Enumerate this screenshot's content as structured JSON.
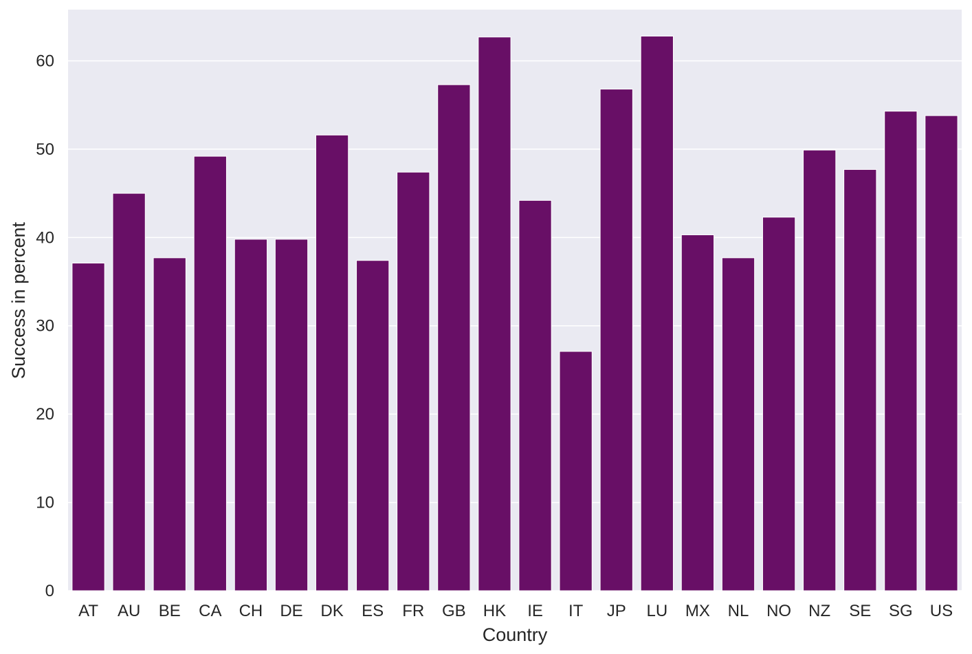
{
  "chart_data": {
    "type": "bar",
    "xlabel": "Country",
    "ylabel": "Success in percent",
    "categories": [
      "AT",
      "AU",
      "BE",
      "CA",
      "CH",
      "DE",
      "DK",
      "ES",
      "FR",
      "GB",
      "HK",
      "IE",
      "IT",
      "JP",
      "LU",
      "MX",
      "NL",
      "NO",
      "NZ",
      "SE",
      "SG",
      "US"
    ],
    "values": [
      37.1,
      45.0,
      37.7,
      49.2,
      39.8,
      39.8,
      51.6,
      37.4,
      47.4,
      57.3,
      62.7,
      44.2,
      27.1,
      56.8,
      62.8,
      40.3,
      37.7,
      42.3,
      49.9,
      47.7,
      54.3,
      53.8
    ],
    "yticks": [
      0,
      10,
      20,
      30,
      40,
      50,
      60
    ],
    "ylim": [
      0,
      65.8
    ],
    "grid": true,
    "colors": {
      "bar": "#680f66",
      "background": "#eaeaf2",
      "grid": "#ffffff",
      "text": "#262626"
    }
  }
}
